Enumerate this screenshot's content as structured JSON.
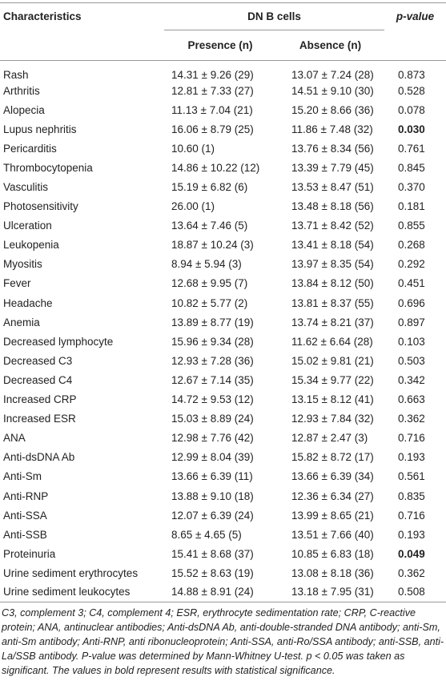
{
  "table": {
    "header": {
      "characteristics": "Characteristics",
      "group": "DN B cells",
      "p_value": "p-value",
      "presence": "Presence (n)",
      "absence": "Absence (n)"
    },
    "rows": [
      {
        "name": "Rash",
        "presence": "14.31 ± 9.26 (29)",
        "absence": "13.07 ± 7.24 (28)",
        "p": "0.873"
      },
      {
        "name": "Arthritis",
        "presence": "12.81 ± 7.33 (27)",
        "absence": "14.51 ± 9.10 (30)",
        "p": "0.528"
      },
      {
        "name": "Alopecia",
        "presence": "11.13 ± 7.04 (21)",
        "absence": "15.20 ± 8.66 (36)",
        "p": "0.078"
      },
      {
        "name": "Lupus nephritis",
        "presence": "16.06 ± 8.79 (25)",
        "absence": "11.86 ± 7.48 (32)",
        "p": "0.030",
        "emphasis": "bold"
      },
      {
        "name": "Pericarditis",
        "presence": "10.60 (1)",
        "absence": "13.76 ± 8.34 (56)",
        "p": "0.761"
      },
      {
        "name": "Thrombocytopenia",
        "presence": "14.86 ± 10.22 (12)",
        "absence": "13.39 ± 7.79 (45)",
        "p": "0.845"
      },
      {
        "name": "Vasculitis",
        "presence": "15.19 ± 6.82 (6)",
        "absence": "13.53 ± 8.47 (51)",
        "p": "0.370"
      },
      {
        "name": "Photosensitivity",
        "presence": "26.00 (1)",
        "absence": "13.48 ± 8.18 (56)",
        "p": "0.181"
      },
      {
        "name": "Ulceration",
        "presence": "13.64 ± 7.46 (5)",
        "absence": "13.71 ± 8.42 (52)",
        "p": "0.855"
      },
      {
        "name": "Leukopenia",
        "presence": "18.87 ± 10.24 (3)",
        "absence": "13.41 ± 8.18 (54)",
        "p": "0.268"
      },
      {
        "name": "Myositis",
        "presence": "8.94 ± 5.94 (3)",
        "absence": "13.97 ± 8.35 (54)",
        "p": "0.292"
      },
      {
        "name": "Fever",
        "presence": "12.68 ± 9.95 (7)",
        "absence": "13.84 ± 8.12 (50)",
        "p": "0.451"
      },
      {
        "name": "Headache",
        "presence": "10.82 ± 5.77 (2)",
        "absence": "13.81 ± 8.37 (55)",
        "p": "0.696"
      },
      {
        "name": "Anemia",
        "presence": "13.89 ± 8.77 (19)",
        "absence": "13.74 ± 8.21 (37)",
        "p": "0.897"
      },
      {
        "name": "Decreased lymphocyte",
        "presence": "15.96 ± 9.34 (28)",
        "absence": "11.62 ± 6.64 (28)",
        "p": "0.103"
      },
      {
        "name": "Decreased C3",
        "presence": "12.93 ± 7.28 (36)",
        "absence": "15.02 ± 9.81 (21)",
        "p": "0.503"
      },
      {
        "name": "Decreased C4",
        "presence": "12.67 ± 7.14 (35)",
        "absence": "15.34 ± 9.77 (22)",
        "p": "0.342"
      },
      {
        "name": "Increased CRP",
        "presence": "14.72 ± 9.53 (12)",
        "absence": "13.15 ± 8.12 (41)",
        "p": "0.663"
      },
      {
        "name": "Increased ESR",
        "presence": "15.03 ± 8.89 (24)",
        "absence": "12.93 ± 7.84 (32)",
        "p": "0.362"
      },
      {
        "name": "ANA",
        "presence": "12.98 ± 7.76 (42)",
        "absence": "12.87 ± 2.47 (3)",
        "p": "0.716"
      },
      {
        "name": "Anti-dsDNA Ab",
        "presence": "12.99 ± 8.04 (39)",
        "absence": "15.82 ± 8.72 (17)",
        "p": "0.193"
      },
      {
        "name": "Anti-Sm",
        "presence": "13.66 ± 6.39 (11)",
        "absence": "13.66 ± 6.39 (34)",
        "p": "0.561"
      },
      {
        "name": "Anti-RNP",
        "presence": "13.88 ± 9.10 (18)",
        "absence": "12.36 ± 6.34 (27)",
        "p": "0.835"
      },
      {
        "name": "Anti-SSA",
        "presence": "12.07 ± 6.39 (24)",
        "absence": "13.99 ± 8.65 (21)",
        "p": "0.716"
      },
      {
        "name": "Anti-SSB",
        "presence": "8.65 ± 4.65 (5)",
        "absence": "13.51 ± 7.66 (40)",
        "p": "0.193"
      },
      {
        "name": "Proteinuria",
        "presence": "15.41 ± 8.68 (37)",
        "absence": "10.85 ± 6.83 (18)",
        "p": "0.049",
        "emphasis": "bold"
      },
      {
        "name": "Urine sediment erythrocytes",
        "presence": "15.52 ± 8.63 (19)",
        "absence": "13.08 ± 8.18 (36)",
        "p": "0.362"
      },
      {
        "name": "Urine sediment leukocytes",
        "presence": "14.88 ± 8.91 (24)",
        "absence": "13.18 ± 7.95 (31)",
        "p": "0.508"
      }
    ],
    "footnote": "C3, complement 3; C4, complement 4; ESR, erythrocyte sedimentation rate; CRP, C-reactive protein; ANA, antinuclear antibodies; Anti-dsDNA Ab, anti-double-stranded DNA antibody; anti-Sm, anti-Sm antibody; Anti-RNP, anti ribonucleoprotein; Anti-SSA, anti-Ro/SSA antibody; anti-SSB, anti-La/SSB antibody. P-value was determined by Mann-Whitney U-test. p < 0.05 was taken as significant. The values in bold represent results with statistical significance."
  }
}
